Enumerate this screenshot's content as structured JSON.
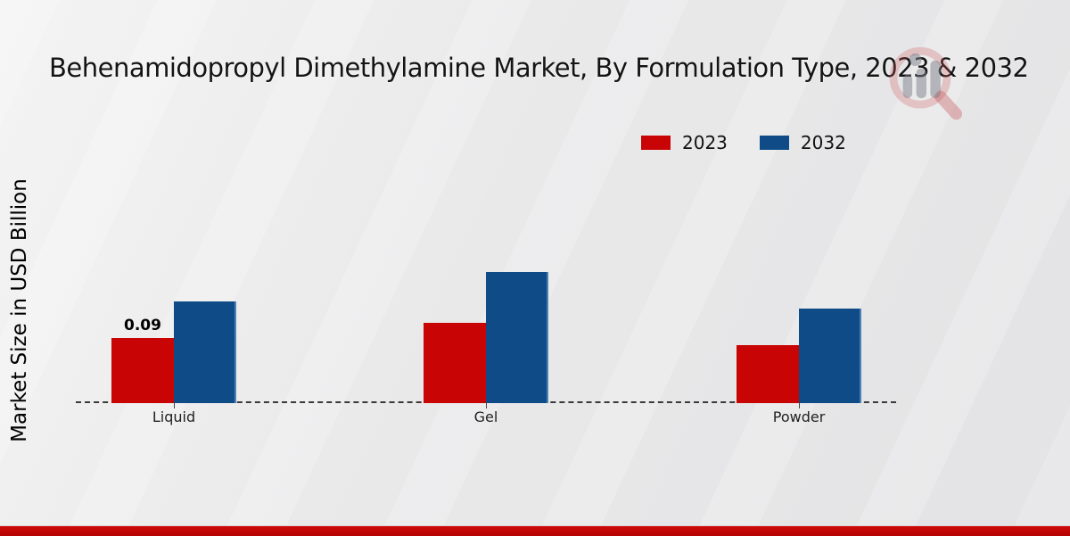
{
  "title": "Behenamidopropyl Dimethylamine Market, By Formulation Type, 2023 & 2032",
  "y_axis_label": "Market Size in USD Billion",
  "watermark_icon": "market-research-future-logo",
  "footer": {
    "accent_color": "#b30404"
  },
  "chart_data": {
    "type": "bar",
    "title": "Behenamidopropyl Dimethylamine Market, By Formulation Type, 2023 & 2032",
    "ylabel": "Market Size in USD Billion",
    "categories": [
      "Liquid",
      "Gel",
      "Powder"
    ],
    "series": [
      {
        "name": "2023",
        "color": "#c80404",
        "values": [
          0.09,
          0.11,
          0.08
        ]
      },
      {
        "name": "2032",
        "color": "#0f4c87",
        "values": [
          0.14,
          0.18,
          0.13
        ]
      }
    ],
    "value_labels": [
      {
        "series_index": 0,
        "category_index": 0,
        "text": "0.09"
      }
    ],
    "ylim": [
      0,
      0.2
    ],
    "legend_position": "top-center",
    "grid": false,
    "baseline_style": "dashed"
  }
}
